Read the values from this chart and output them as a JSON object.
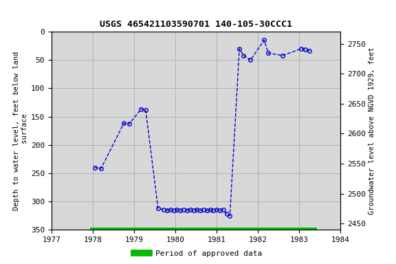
{
  "title": "USGS 465421103590701 140-105-30CCC1",
  "ylabel_left": "Depth to water level, feet below land\n surface",
  "ylabel_right": "Groundwater level above NGVD 1929, feet",
  "ylim_left": [
    350,
    0
  ],
  "ylim_right": [
    2440,
    2770
  ],
  "xlim": [
    1977,
    1984
  ],
  "xticks": [
    1977,
    1978,
    1979,
    1980,
    1981,
    1982,
    1983,
    1984
  ],
  "yticks_left": [
    0,
    50,
    100,
    150,
    200,
    250,
    300,
    350
  ],
  "yticks_right": [
    2450,
    2500,
    2550,
    2600,
    2650,
    2700,
    2750
  ],
  "data_x": [
    1978.05,
    1978.2,
    1978.75,
    1978.88,
    1979.17,
    1979.28,
    1979.58,
    1979.72,
    1979.8,
    1979.88,
    1979.96,
    1980.04,
    1980.12,
    1980.2,
    1980.28,
    1980.36,
    1980.44,
    1980.52,
    1980.6,
    1980.68,
    1980.76,
    1980.84,
    1980.92,
    1981.0,
    1981.08,
    1981.16,
    1981.24,
    1981.32,
    1981.55,
    1981.65,
    1981.82,
    1982.15,
    1982.25,
    1982.6,
    1983.05,
    1983.15,
    1983.25
  ],
  "data_y": [
    240,
    242,
    162,
    163,
    137,
    138,
    312,
    315,
    316,
    315,
    316,
    315,
    316,
    315,
    316,
    315,
    316,
    315,
    316,
    315,
    316,
    315,
    316,
    315,
    316,
    315,
    322,
    325,
    30,
    42,
    50,
    15,
    38,
    42,
    30,
    32,
    34
  ],
  "line_color": "#0000cc",
  "marker_color": "#0000cc",
  "line_style": "--",
  "marker_style": "o",
  "marker_size": 4,
  "line_width": 1.0,
  "grid_color": "#b0b0b0",
  "bg_color": "#d8d8d8",
  "approved_bar_color": "#00bb00",
  "approved_bar_x_start": 1977.93,
  "approved_bar_x_end": 1983.42,
  "legend_label": "Period of approved data",
  "legend_fontsize": 8
}
